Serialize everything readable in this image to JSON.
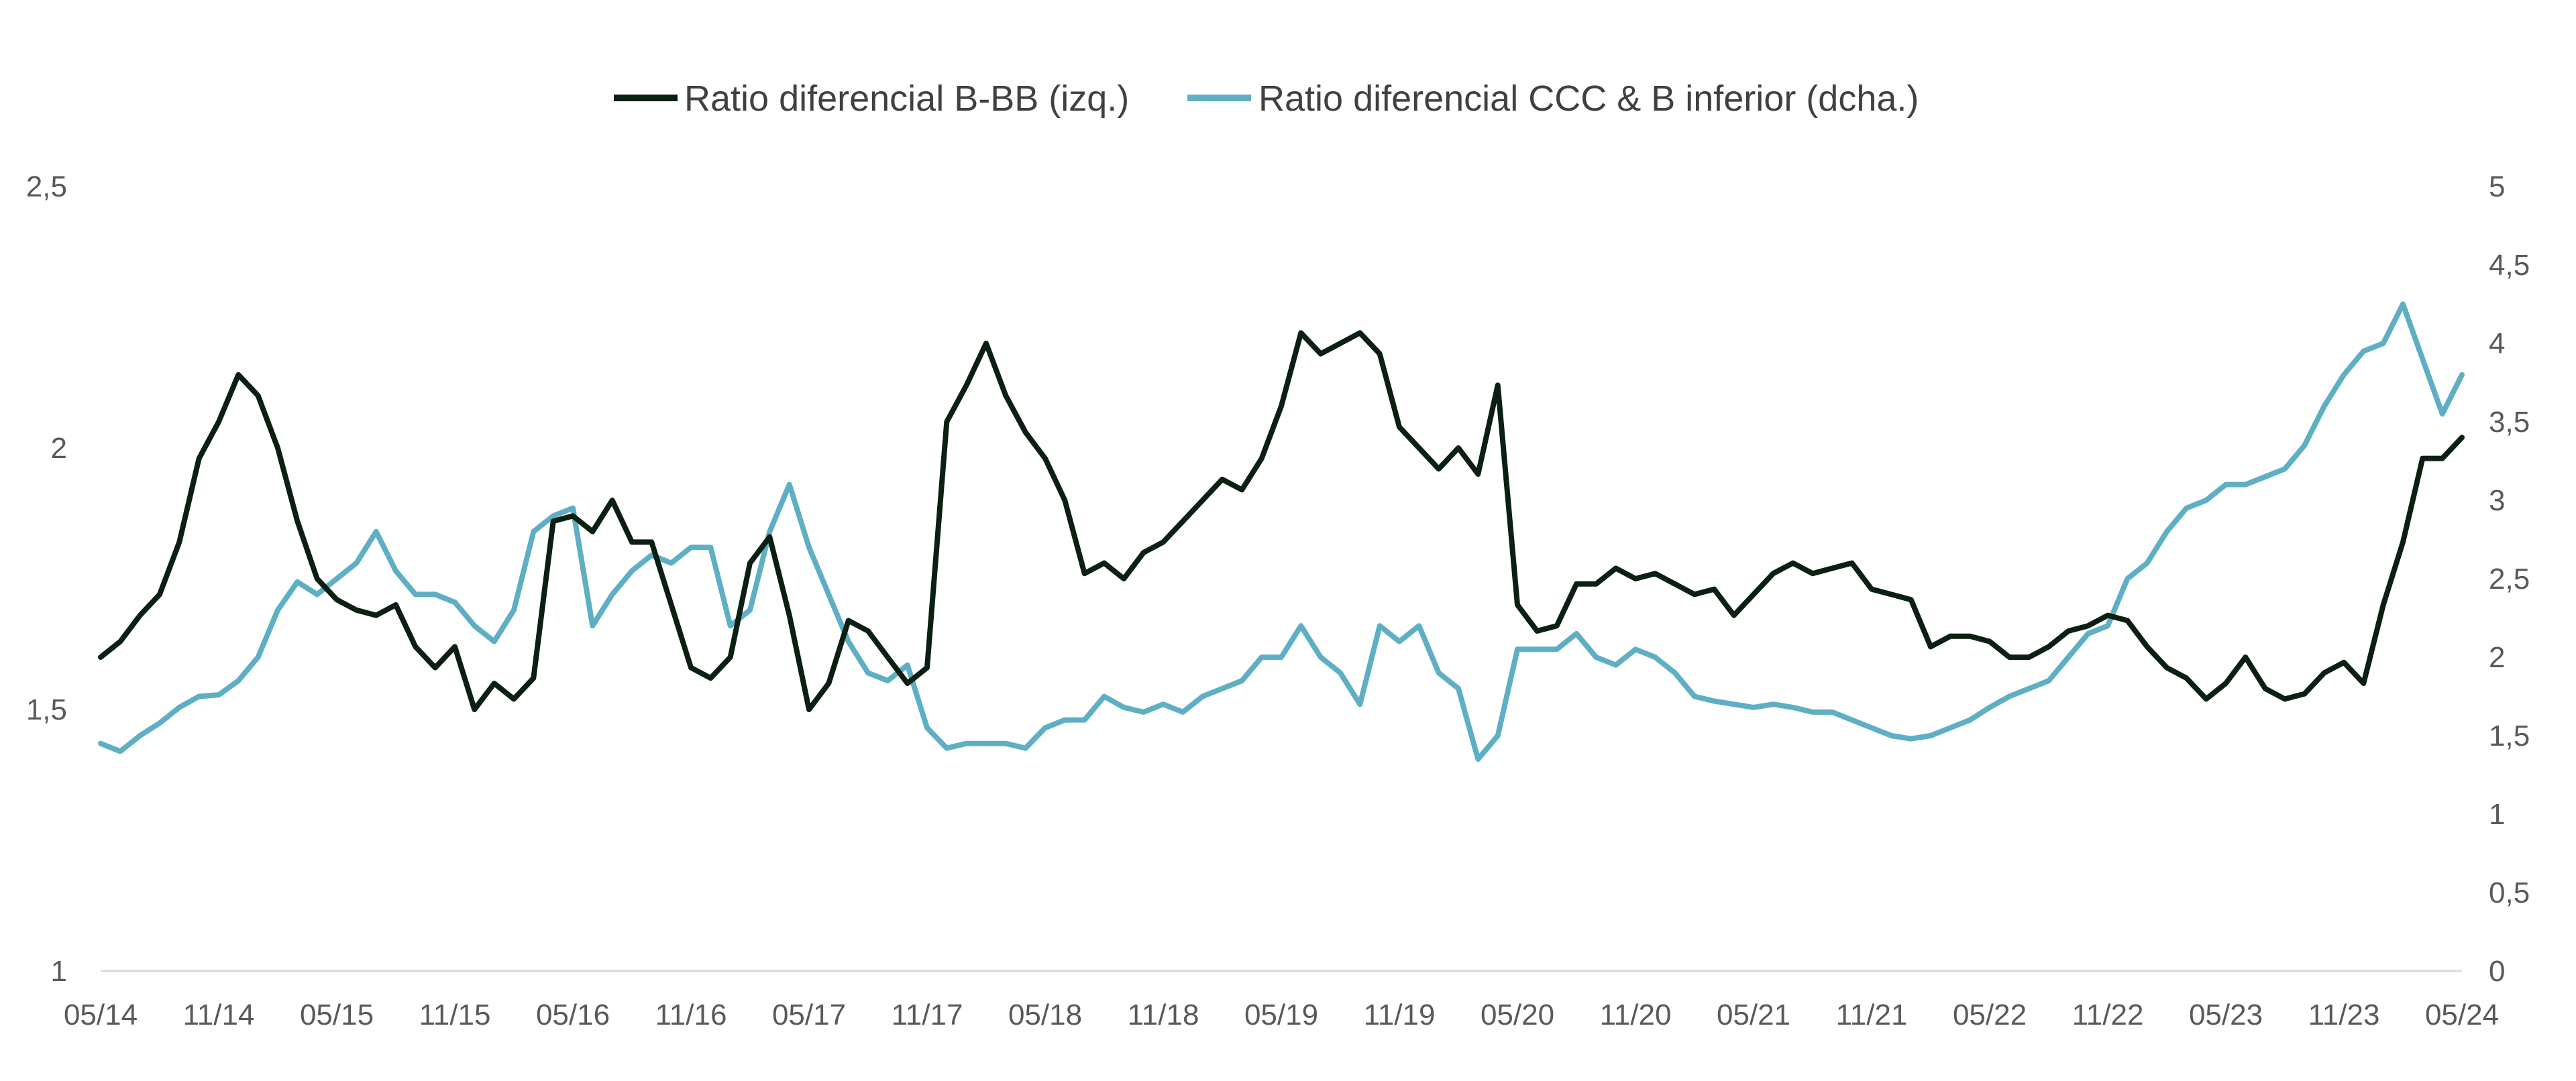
{
  "chart_data": {
    "type": "line",
    "title": "",
    "legend_position": "top-center",
    "grid": false,
    "x_tick_labels": [
      "05/14",
      "11/14",
      "05/15",
      "11/15",
      "05/16",
      "11/16",
      "05/17",
      "11/17",
      "05/18",
      "11/18",
      "05/19",
      "11/19",
      "05/20",
      "11/20",
      "05/21",
      "11/21",
      "05/22",
      "11/22",
      "05/23",
      "11/23",
      "05/24"
    ],
    "x_range": [
      "2014-05",
      "2024-05"
    ],
    "y_left": {
      "ticks": [
        "1",
        "1,5",
        "2",
        "2,5"
      ],
      "range": [
        1,
        2.5
      ]
    },
    "y_right": {
      "ticks": [
        "0",
        "0,5",
        "1",
        "1,5",
        "2",
        "2,5",
        "3",
        "3,5",
        "4",
        "4,5",
        "5"
      ],
      "range": [
        0,
        5
      ]
    },
    "series": [
      {
        "name": "Ratio diferencial B-BB (izq.)",
        "axis": "left",
        "color": "#0b1f12",
        "points": [
          [
            "2014-05",
            1.6
          ],
          [
            "2014-06",
            1.63
          ],
          [
            "2014-07",
            1.68
          ],
          [
            "2014-08",
            1.72
          ],
          [
            "2014-09",
            1.82
          ],
          [
            "2014-10",
            1.98
          ],
          [
            "2014-11",
            2.05
          ],
          [
            "2014-12",
            2.14
          ],
          [
            "2015-01",
            2.1
          ],
          [
            "2015-02",
            2.0
          ],
          [
            "2015-03",
            1.86
          ],
          [
            "2015-04",
            1.75
          ],
          [
            "2015-05",
            1.71
          ],
          [
            "2015-06",
            1.69
          ],
          [
            "2015-07",
            1.68
          ],
          [
            "2015-08",
            1.7
          ],
          [
            "2015-09",
            1.62
          ],
          [
            "2015-10",
            1.58
          ],
          [
            "2015-11",
            1.62
          ],
          [
            "2015-12",
            1.5
          ],
          [
            "2016-01",
            1.55
          ],
          [
            "2016-02",
            1.52
          ],
          [
            "2016-03",
            1.56
          ],
          [
            "2016-04",
            1.86
          ],
          [
            "2016-05",
            1.87
          ],
          [
            "2016-06",
            1.84
          ],
          [
            "2016-07",
            1.9
          ],
          [
            "2016-08",
            1.82
          ],
          [
            "2016-09",
            1.82
          ],
          [
            "2016-10",
            1.7
          ],
          [
            "2016-11",
            1.58
          ],
          [
            "2016-12",
            1.56
          ],
          [
            "2017-01",
            1.6
          ],
          [
            "2017-02",
            1.78
          ],
          [
            "2017-03",
            1.83
          ],
          [
            "2017-04",
            1.68
          ],
          [
            "2017-05",
            1.5
          ],
          [
            "2017-06",
            1.55
          ],
          [
            "2017-07",
            1.67
          ],
          [
            "2017-08",
            1.65
          ],
          [
            "2017-09",
            1.6
          ],
          [
            "2017-10",
            1.55
          ],
          [
            "2017-11",
            1.58
          ],
          [
            "2017-12",
            2.05
          ],
          [
            "2018-01",
            2.12
          ],
          [
            "2018-02",
            2.2
          ],
          [
            "2018-03",
            2.1
          ],
          [
            "2018-04",
            2.03
          ],
          [
            "2018-05",
            1.98
          ],
          [
            "2018-06",
            1.9
          ],
          [
            "2018-07",
            1.76
          ],
          [
            "2018-08",
            1.78
          ],
          [
            "2018-09",
            1.75
          ],
          [
            "2018-10",
            1.8
          ],
          [
            "2018-11",
            1.82
          ],
          [
            "2018-12",
            1.86
          ],
          [
            "2019-01",
            1.9
          ],
          [
            "2019-02",
            1.94
          ],
          [
            "2019-03",
            1.92
          ],
          [
            "2019-04",
            1.98
          ],
          [
            "2019-05",
            2.08
          ],
          [
            "2019-06",
            2.22
          ],
          [
            "2019-07",
            2.18
          ],
          [
            "2019-08",
            2.2
          ],
          [
            "2019-09",
            2.22
          ],
          [
            "2019-10",
            2.18
          ],
          [
            "2019-11",
            2.04
          ],
          [
            "2019-12",
            2.0
          ],
          [
            "2020-01",
            1.96
          ],
          [
            "2020-02",
            2.0
          ],
          [
            "2020-03",
            1.95
          ],
          [
            "2020-04",
            2.12
          ],
          [
            "2020-05",
            1.7
          ],
          [
            "2020-06",
            1.65
          ],
          [
            "2020-07",
            1.66
          ],
          [
            "2020-08",
            1.74
          ],
          [
            "2020-09",
            1.74
          ],
          [
            "2020-10",
            1.77
          ],
          [
            "2020-11",
            1.75
          ],
          [
            "2020-12",
            1.76
          ],
          [
            "2021-01",
            1.74
          ],
          [
            "2021-02",
            1.72
          ],
          [
            "2021-03",
            1.73
          ],
          [
            "2021-04",
            1.68
          ],
          [
            "2021-05",
            1.72
          ],
          [
            "2021-06",
            1.76
          ],
          [
            "2021-07",
            1.78
          ],
          [
            "2021-08",
            1.76
          ],
          [
            "2021-09",
            1.77
          ],
          [
            "2021-10",
            1.78
          ],
          [
            "2021-11",
            1.73
          ],
          [
            "2021-12",
            1.72
          ],
          [
            "2022-01",
            1.71
          ],
          [
            "2022-02",
            1.62
          ],
          [
            "2022-03",
            1.64
          ],
          [
            "2022-04",
            1.64
          ],
          [
            "2022-05",
            1.63
          ],
          [
            "2022-06",
            1.6
          ],
          [
            "2022-07",
            1.6
          ],
          [
            "2022-08",
            1.62
          ],
          [
            "2022-09",
            1.65
          ],
          [
            "2022-10",
            1.66
          ],
          [
            "2022-11",
            1.68
          ],
          [
            "2022-12",
            1.67
          ],
          [
            "2023-01",
            1.62
          ],
          [
            "2023-02",
            1.58
          ],
          [
            "2023-03",
            1.56
          ],
          [
            "2023-04",
            1.52
          ],
          [
            "2023-05",
            1.55
          ],
          [
            "2023-06",
            1.6
          ],
          [
            "2023-07",
            1.54
          ],
          [
            "2023-08",
            1.52
          ],
          [
            "2023-09",
            1.53
          ],
          [
            "2023-10",
            1.57
          ],
          [
            "2023-11",
            1.59
          ],
          [
            "2023-12",
            1.55
          ],
          [
            "2024-01",
            1.7
          ],
          [
            "2024-02",
            1.82
          ],
          [
            "2024-03",
            1.98
          ],
          [
            "2024-04",
            1.98
          ],
          [
            "2024-05",
            2.02
          ]
        ]
      },
      {
        "name": "Ratio diferencial CCC & B inferior (dcha.)",
        "axis": "right",
        "color": "#5fafc4",
        "points": [
          [
            "2014-05",
            1.45
          ],
          [
            "2014-06",
            1.4
          ],
          [
            "2014-07",
            1.5
          ],
          [
            "2014-08",
            1.58
          ],
          [
            "2014-09",
            1.68
          ],
          [
            "2014-10",
            1.75
          ],
          [
            "2014-11",
            1.76
          ],
          [
            "2014-12",
            1.85
          ],
          [
            "2015-01",
            2.0
          ],
          [
            "2015-02",
            2.3
          ],
          [
            "2015-03",
            2.48
          ],
          [
            "2015-04",
            2.4
          ],
          [
            "2015-05",
            2.5
          ],
          [
            "2015-06",
            2.6
          ],
          [
            "2015-07",
            2.8
          ],
          [
            "2015-08",
            2.55
          ],
          [
            "2015-09",
            2.4
          ],
          [
            "2015-10",
            2.4
          ],
          [
            "2015-11",
            2.35
          ],
          [
            "2015-12",
            2.2
          ],
          [
            "2016-01",
            2.1
          ],
          [
            "2016-02",
            2.3
          ],
          [
            "2016-03",
            2.8
          ],
          [
            "2016-04",
            2.9
          ],
          [
            "2016-05",
            2.95
          ],
          [
            "2016-06",
            2.2
          ],
          [
            "2016-07",
            2.4
          ],
          [
            "2016-08",
            2.55
          ],
          [
            "2016-09",
            2.65
          ],
          [
            "2016-10",
            2.6
          ],
          [
            "2016-11",
            2.7
          ],
          [
            "2016-12",
            2.7
          ],
          [
            "2017-01",
            2.2
          ],
          [
            "2017-02",
            2.3
          ],
          [
            "2017-03",
            2.8
          ],
          [
            "2017-04",
            3.1
          ],
          [
            "2017-05",
            2.7
          ],
          [
            "2017-06",
            2.4
          ],
          [
            "2017-07",
            2.1
          ],
          [
            "2017-08",
            1.9
          ],
          [
            "2017-09",
            1.85
          ],
          [
            "2017-10",
            1.95
          ],
          [
            "2017-11",
            1.55
          ],
          [
            "2017-12",
            1.42
          ],
          [
            "2018-01",
            1.45
          ],
          [
            "2018-02",
            1.45
          ],
          [
            "2018-03",
            1.45
          ],
          [
            "2018-04",
            1.42
          ],
          [
            "2018-05",
            1.55
          ],
          [
            "2018-06",
            1.6
          ],
          [
            "2018-07",
            1.6
          ],
          [
            "2018-08",
            1.75
          ],
          [
            "2018-09",
            1.68
          ],
          [
            "2018-10",
            1.65
          ],
          [
            "2018-11",
            1.7
          ],
          [
            "2018-12",
            1.65
          ],
          [
            "2019-01",
            1.75
          ],
          [
            "2019-02",
            1.8
          ],
          [
            "2019-03",
            1.85
          ],
          [
            "2019-04",
            2.0
          ],
          [
            "2019-05",
            2.0
          ],
          [
            "2019-06",
            2.2
          ],
          [
            "2019-07",
            2.0
          ],
          [
            "2019-08",
            1.9
          ],
          [
            "2019-09",
            1.7
          ],
          [
            "2019-10",
            2.2
          ],
          [
            "2019-11",
            2.1
          ],
          [
            "2019-12",
            2.2
          ],
          [
            "2020-01",
            1.9
          ],
          [
            "2020-02",
            1.8
          ],
          [
            "2020-03",
            1.35
          ],
          [
            "2020-04",
            1.5
          ],
          [
            "2020-05",
            2.05
          ],
          [
            "2020-06",
            2.05
          ],
          [
            "2020-07",
            2.05
          ],
          [
            "2020-08",
            2.15
          ],
          [
            "2020-09",
            2.0
          ],
          [
            "2020-10",
            1.95
          ],
          [
            "2020-11",
            2.05
          ],
          [
            "2020-12",
            2.0
          ],
          [
            "2021-01",
            1.9
          ],
          [
            "2021-02",
            1.75
          ],
          [
            "2021-03",
            1.72
          ],
          [
            "2021-04",
            1.7
          ],
          [
            "2021-05",
            1.68
          ],
          [
            "2021-06",
            1.7
          ],
          [
            "2021-07",
            1.68
          ],
          [
            "2021-08",
            1.65
          ],
          [
            "2021-09",
            1.65
          ],
          [
            "2021-10",
            1.6
          ],
          [
            "2021-11",
            1.55
          ],
          [
            "2021-12",
            1.5
          ],
          [
            "2022-01",
            1.48
          ],
          [
            "2022-02",
            1.5
          ],
          [
            "2022-03",
            1.55
          ],
          [
            "2022-04",
            1.6
          ],
          [
            "2022-05",
            1.68
          ],
          [
            "2022-06",
            1.75
          ],
          [
            "2022-07",
            1.8
          ],
          [
            "2022-08",
            1.85
          ],
          [
            "2022-09",
            2.0
          ],
          [
            "2022-10",
            2.15
          ],
          [
            "2022-11",
            2.2
          ],
          [
            "2022-12",
            2.5
          ],
          [
            "2023-01",
            2.6
          ],
          [
            "2023-02",
            2.8
          ],
          [
            "2023-03",
            2.95
          ],
          [
            "2023-04",
            3.0
          ],
          [
            "2023-05",
            3.1
          ],
          [
            "2023-06",
            3.1
          ],
          [
            "2023-07",
            3.15
          ],
          [
            "2023-08",
            3.2
          ],
          [
            "2023-09",
            3.35
          ],
          [
            "2023-10",
            3.6
          ],
          [
            "2023-11",
            3.8
          ],
          [
            "2023-12",
            3.95
          ],
          [
            "2024-01",
            4.0
          ],
          [
            "2024-02",
            4.25
          ],
          [
            "2024-03",
            3.9
          ],
          [
            "2024-04",
            3.55
          ],
          [
            "2024-05",
            3.8
          ]
        ]
      }
    ]
  }
}
